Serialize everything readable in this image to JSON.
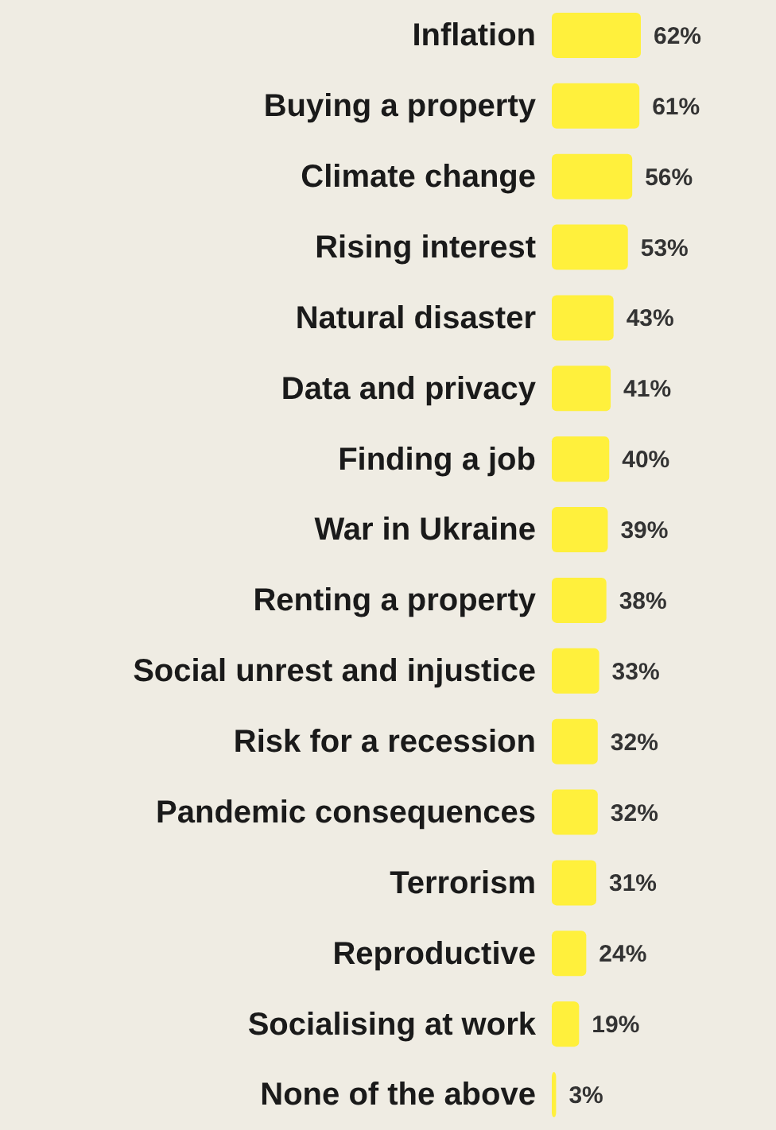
{
  "chart_data": {
    "type": "bar",
    "orientation": "horizontal",
    "categories": [
      "Inflation",
      "Buying a property",
      "Climate change",
      "Rising interest",
      "Natural disaster",
      "Data and privacy",
      "Finding a job",
      "War in Ukraine",
      "Renting a property",
      "Social unrest and injustice",
      "Risk for a recession",
      "Pandemic consequences",
      "Terrorism",
      "Reproductive",
      "Socialising at work",
      "None of the above"
    ],
    "values": [
      62,
      61,
      56,
      53,
      43,
      41,
      40,
      39,
      38,
      33,
      32,
      32,
      31,
      24,
      19,
      3
    ],
    "value_labels": [
      "62%",
      "61%",
      "56%",
      "53%",
      "43%",
      "41%",
      "40%",
      "39%",
      "38%",
      "33%",
      "32%",
      "32%",
      "31%",
      "24%",
      "19%",
      "3%"
    ],
    "color": "#fff03c"
  }
}
